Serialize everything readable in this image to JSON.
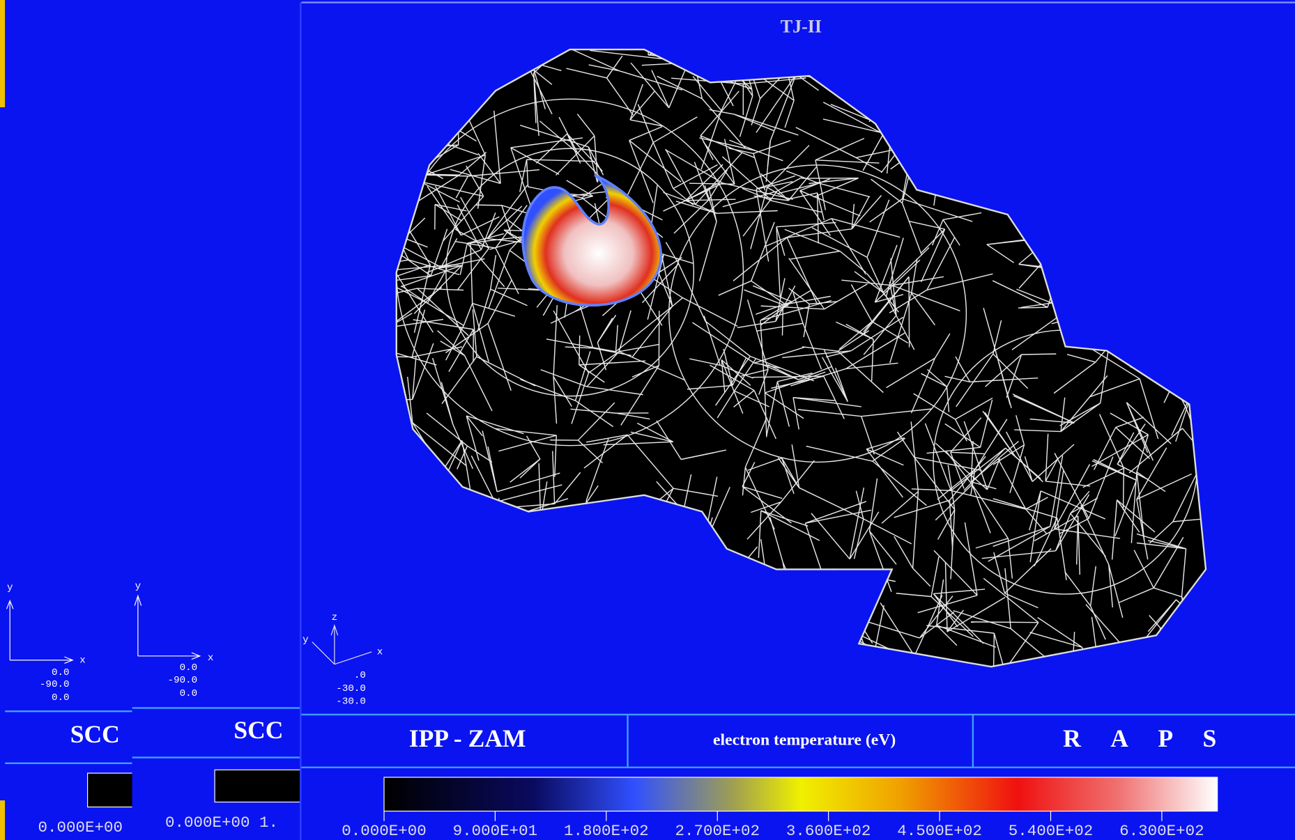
{
  "left_panels": [
    {
      "axis_y": "y",
      "axis_x": "x",
      "coords": [
        "0.0",
        "-90.0",
        "0.0"
      ],
      "label": "SCC",
      "scale_text": "0.000E+00"
    },
    {
      "axis_y": "y",
      "axis_x": "x",
      "coords": [
        "0.0",
        "-90.0",
        "0.0"
      ],
      "label": "SCC",
      "scale_text": "0.000E+00 1."
    }
  ],
  "main": {
    "title": "TJ-II",
    "axis_z": "z",
    "axis_y": "y",
    "axis_x": "x",
    "coords": [
      ".0",
      "-30.0",
      "-30.0"
    ],
    "footer": {
      "left": "IPP - ZAM",
      "center": "electron temperature (eV)",
      "right": "R A P S"
    },
    "colorbar_ticks": [
      "0.000E+00",
      "9.000E+01",
      "1.800E+02",
      "2.700E+02",
      "3.600E+02",
      "4.500E+02",
      "5.400E+02",
      "6.300E+02"
    ]
  }
}
